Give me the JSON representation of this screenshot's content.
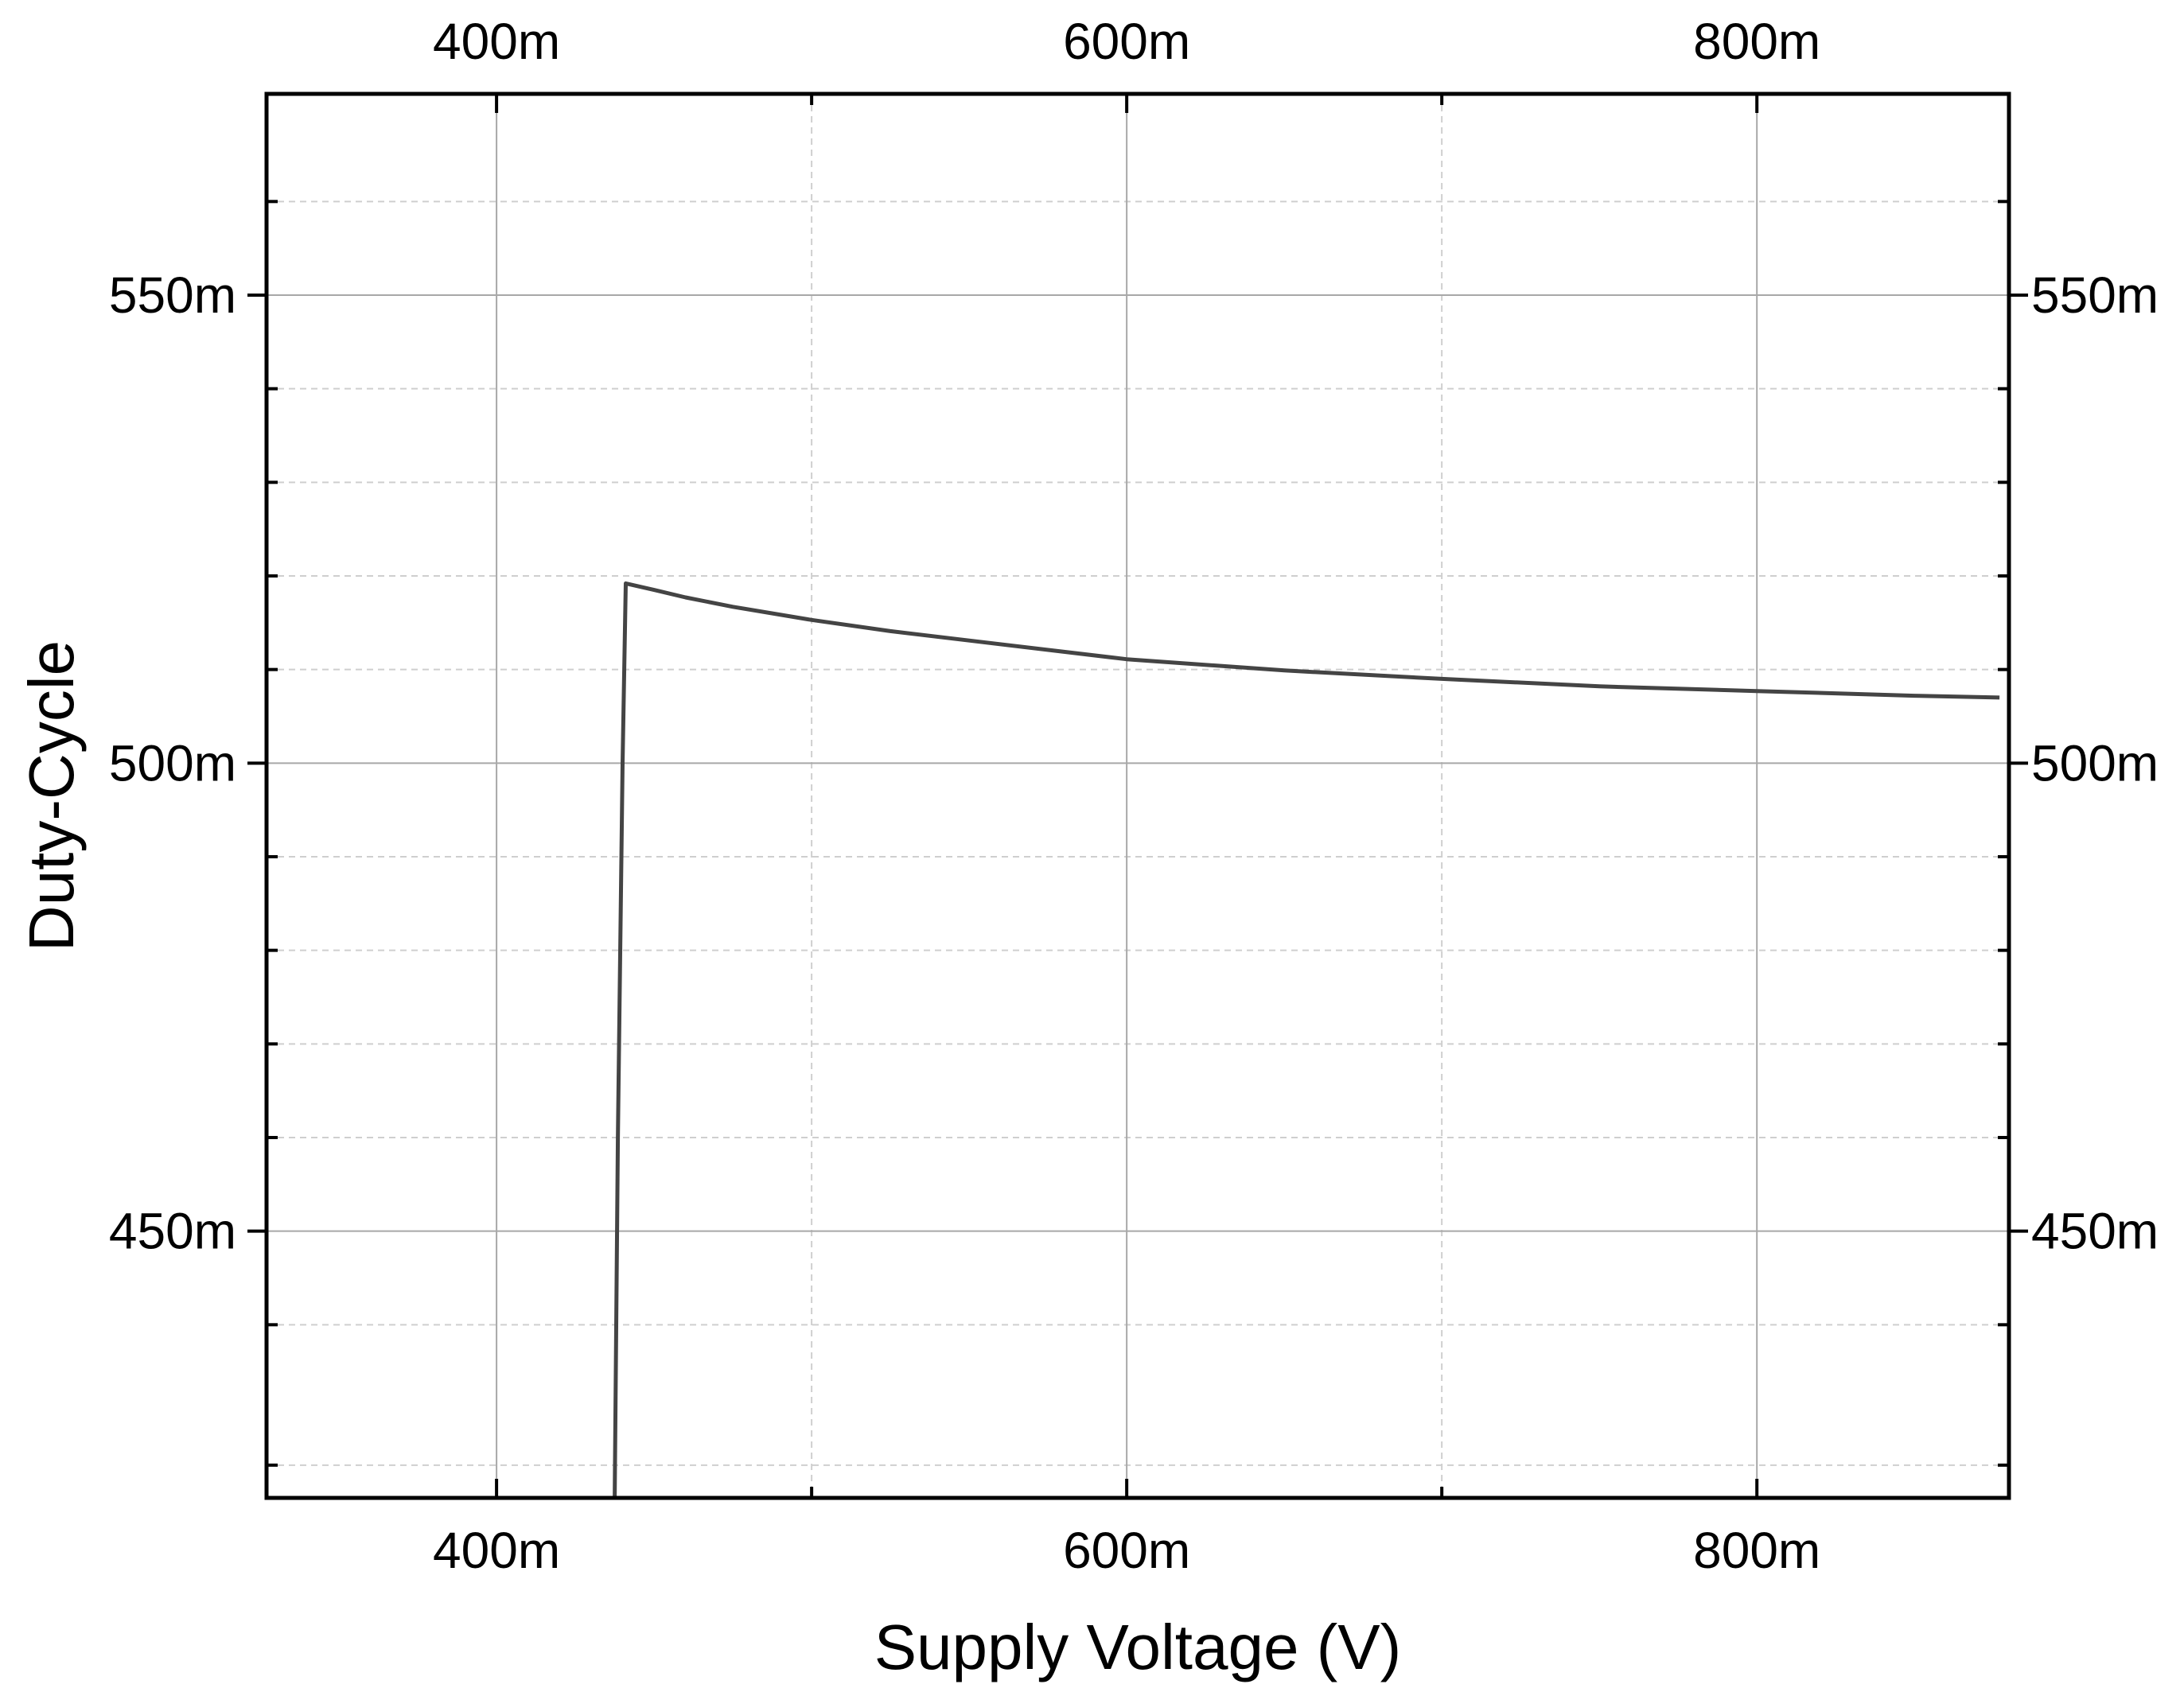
{
  "chart_data": {
    "type": "line",
    "xlabel": "Supply Voltage (V)",
    "ylabel": "Duty-Cycle",
    "xlim": [
      0.327,
      0.88
    ],
    "ylim": [
      0.4215,
      0.5715
    ],
    "x_ticks": [
      0.4,
      0.6,
      0.8
    ],
    "x_tick_labels": [
      "400m",
      "600m",
      "800m"
    ],
    "x_minor_ticks": [
      0.5,
      0.7
    ],
    "y_ticks": [
      0.45,
      0.5,
      0.55
    ],
    "y_tick_labels": [
      "450m",
      "500m",
      "550m"
    ],
    "y_minor_ticks": [
      0.425,
      0.44,
      0.46,
      0.47,
      0.48,
      0.49,
      0.51,
      0.52,
      0.53,
      0.54,
      0.56
    ],
    "grid": true,
    "mirror_axes": "top-right",
    "series": [
      {
        "name": "Duty-Cycle",
        "color": "#444444",
        "x": [
          0.4375,
          0.4385,
          0.44,
          0.441,
          0.45,
          0.46,
          0.475,
          0.5,
          0.525,
          0.55,
          0.6,
          0.65,
          0.7,
          0.75,
          0.8,
          0.85,
          0.877
        ],
        "y": [
          0.4215,
          0.46,
          0.5,
          0.5192,
          0.5185,
          0.5177,
          0.5167,
          0.5153,
          0.5141,
          0.5131,
          0.5111,
          0.5099,
          0.509,
          0.5082,
          0.5077,
          0.5072,
          0.507
        ]
      }
    ]
  }
}
